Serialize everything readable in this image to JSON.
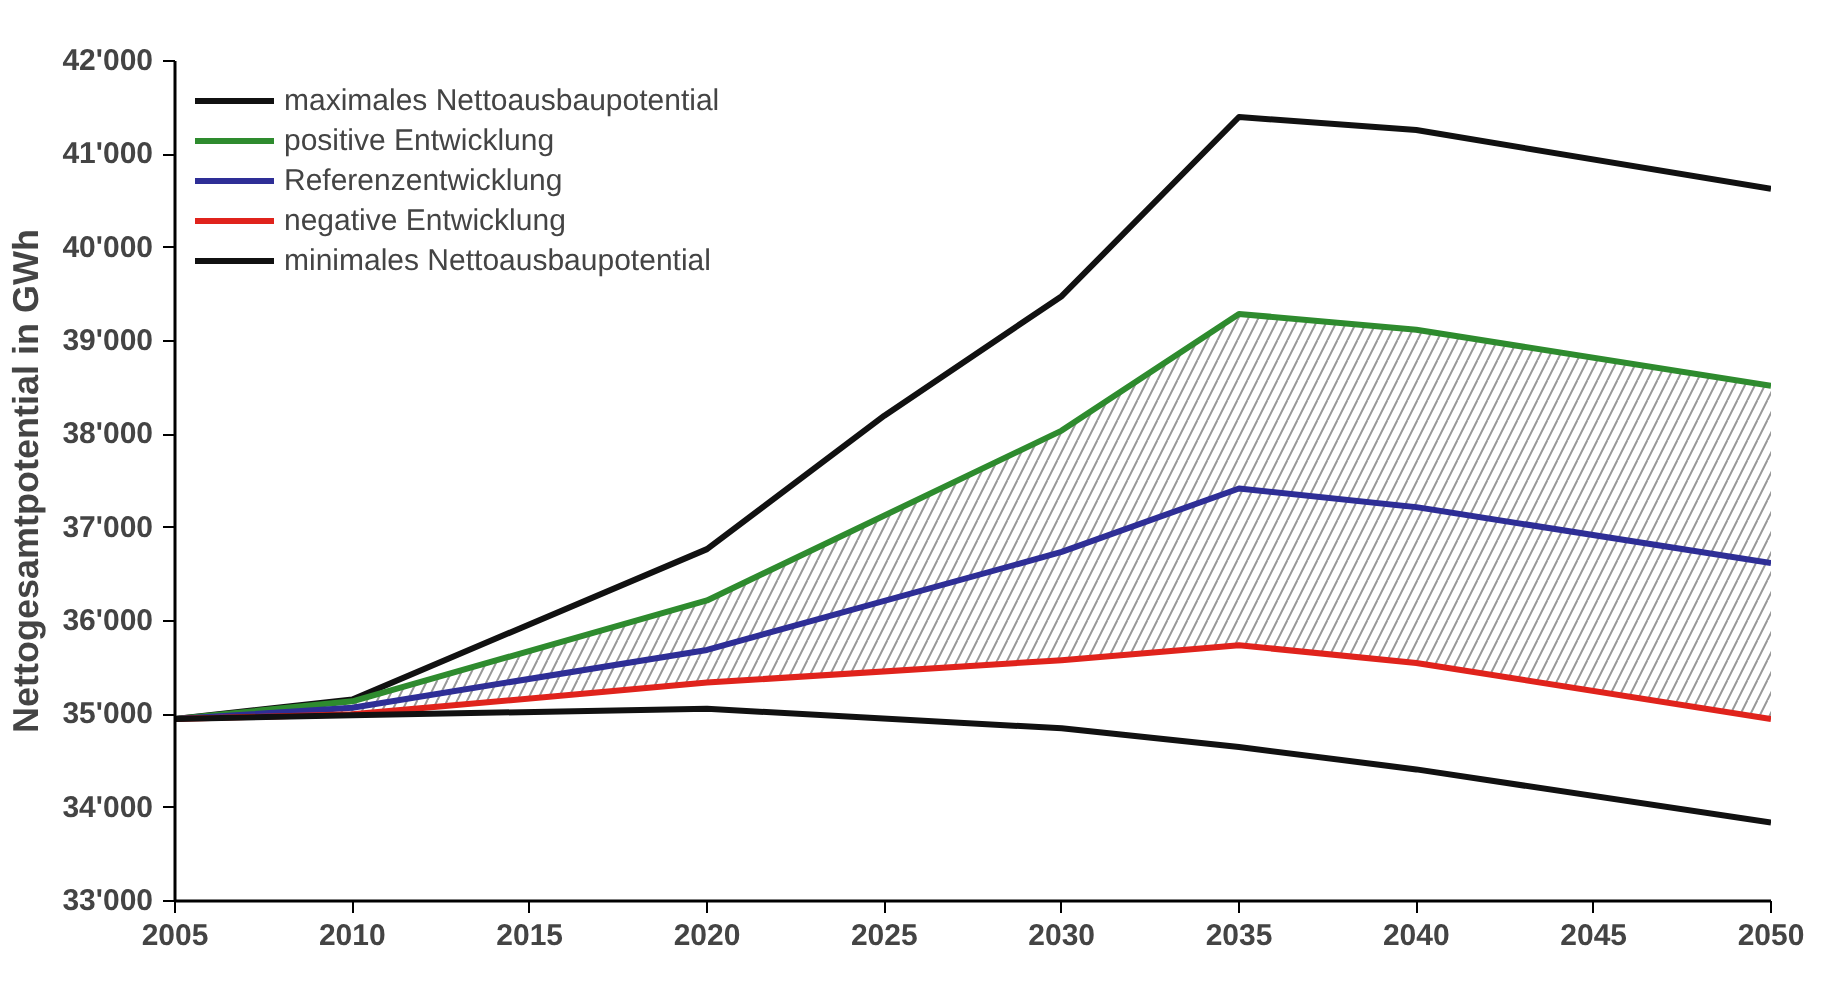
{
  "chart_data": {
    "type": "line",
    "ylabel": "Nettogesamtpotential in GWh",
    "x": [
      2005,
      2010,
      2020,
      2030,
      2035,
      2040,
      2050
    ],
    "series": [
      {
        "name": "maximales Nettoausbaupotential",
        "color": "#111111",
        "x": [
          2005,
          2010,
          2020,
          2025,
          2030,
          2035,
          2040,
          2050
        ],
        "values": [
          34950,
          35160,
          36770,
          38200,
          39480,
          41400,
          41260,
          40630
        ]
      },
      {
        "name": "positive Entwicklung",
        "color": "#2e8b2e",
        "values": [
          34950,
          35140,
          36220,
          38040,
          39290,
          39120,
          38520
        ]
      },
      {
        "name": "Referenzentwicklung",
        "color": "#2e2e96",
        "values": [
          34950,
          35070,
          35690,
          36740,
          37420,
          37220,
          36620
        ],
        "lower": [
          34950,
          35000,
          35340,
          35580,
          35740,
          35550,
          34950
        ],
        "upper": [
          34950,
          35140,
          36220,
          38040,
          39290,
          39120,
          38520
        ]
      },
      {
        "name": "negative Entwicklung",
        "color": "#e0231c",
        "values": [
          34950,
          35000,
          35340,
          35580,
          35740,
          35550,
          34950
        ]
      },
      {
        "name": "minimales Nettoausbaupotential",
        "color": "#111111",
        "values": [
          34950,
          34990,
          35060,
          34850,
          34650,
          34410,
          33840
        ]
      }
    ],
    "xlim": [
      2005,
      2050
    ],
    "xticks": [
      2005,
      2010,
      2015,
      2020,
      2025,
      2030,
      2035,
      2040,
      2045,
      2050
    ],
    "ylim": [
      33000,
      42000
    ],
    "yticks": [
      {
        "value": 33000,
        "label": "33'000"
      },
      {
        "value": 34000,
        "label": "34'000"
      },
      {
        "value": 35000,
        "label": "35'000"
      },
      {
        "value": 36000,
        "label": "36'000"
      },
      {
        "value": 37000,
        "label": "37'000"
      },
      {
        "value": 38000,
        "label": "38'000"
      },
      {
        "value": 39000,
        "label": "39'000"
      },
      {
        "value": 40000,
        "label": "40'000"
      },
      {
        "value": 41000,
        "label": "41'000"
      },
      {
        "value": 42000,
        "label": "42'000"
      }
    ],
    "grid": false,
    "legend": "top left",
    "marker": "none",
    "line_style": "solid"
  }
}
